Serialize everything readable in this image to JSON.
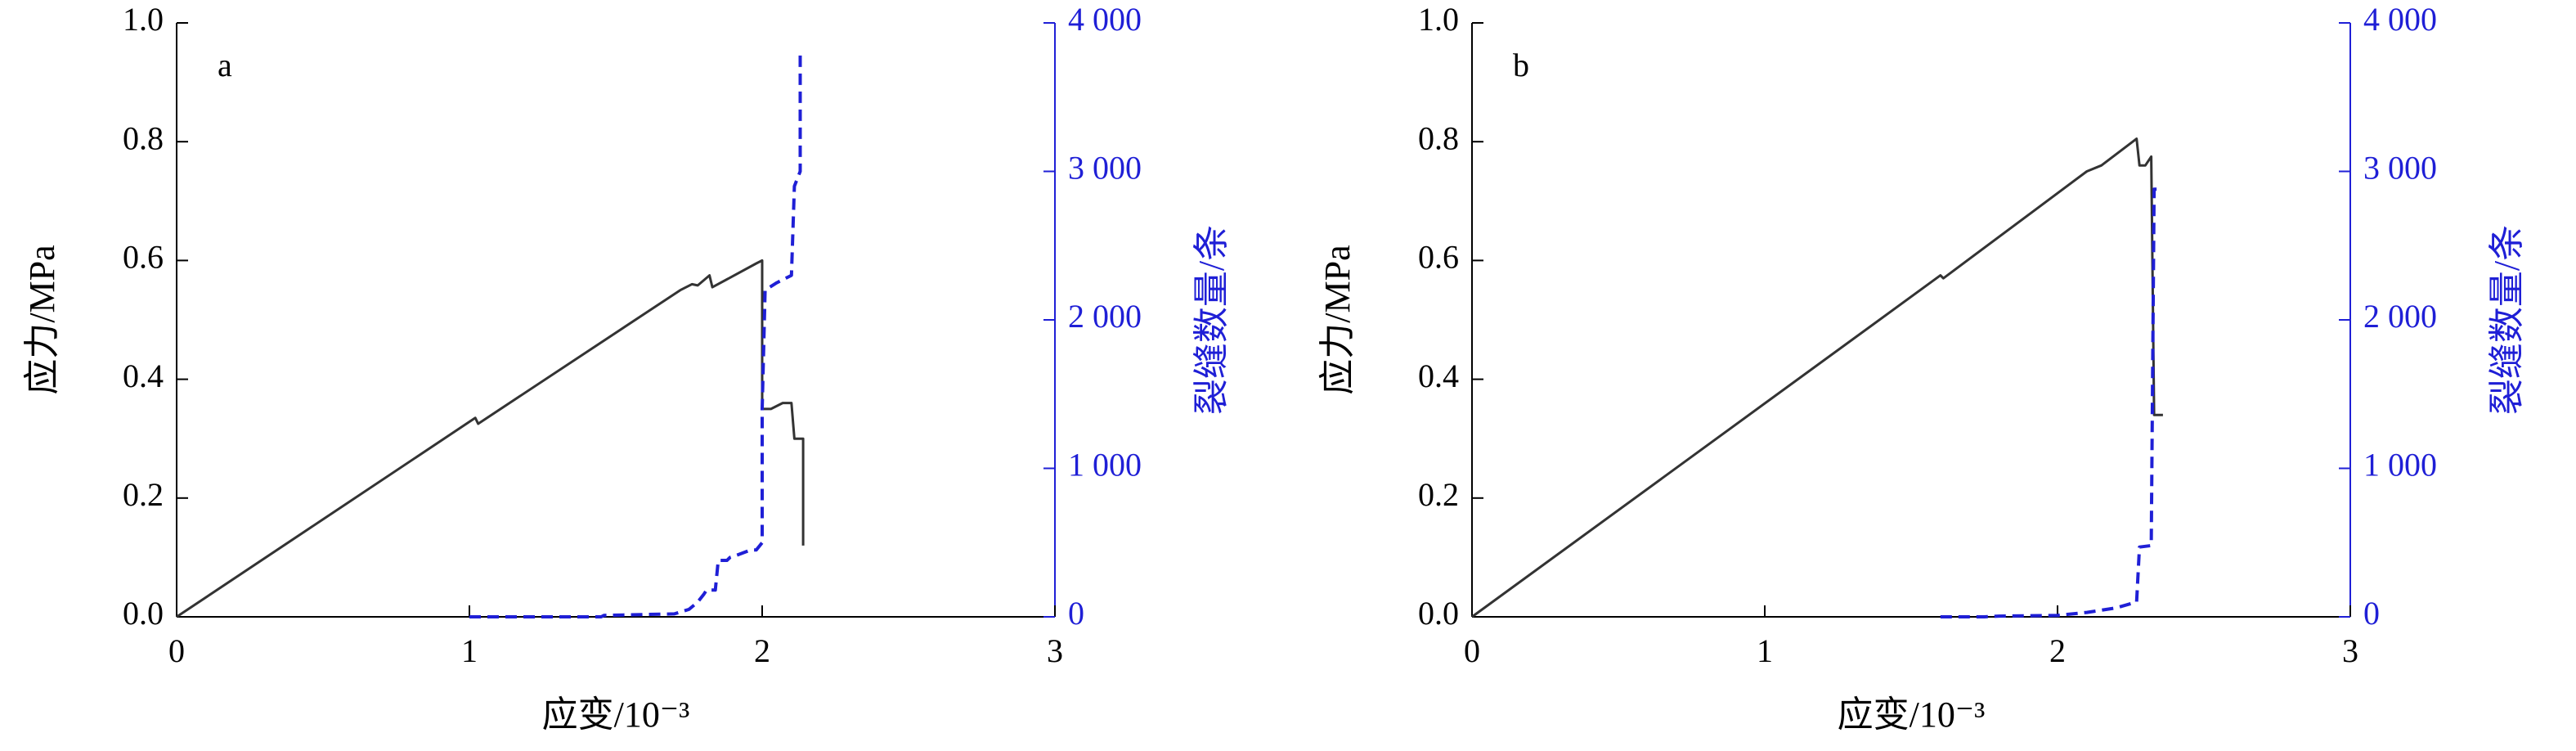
{
  "chart_data": [
    {
      "type": "line",
      "panel_label": "a",
      "xlabel": "应变/10⁻³",
      "ylabel": "应力/MPa",
      "y2label": "裂缝数量/条",
      "xlim": [
        0,
        3
      ],
      "xticks": [
        0,
        1,
        2,
        3
      ],
      "ylim": [
        0,
        1
      ],
      "yticks": [
        {
          "value": 0,
          "label": "0.0"
        },
        {
          "value": 0.2,
          "label": "0.2"
        },
        {
          "value": 0.4,
          "label": "0.4"
        },
        {
          "value": 0.6,
          "label": "0.6"
        },
        {
          "value": 0.8,
          "label": "0.8"
        },
        {
          "value": 1,
          "label": "1.0"
        }
      ],
      "y2lim": [
        0,
        4000
      ],
      "y2ticks": [
        0,
        {
          "value": 1000,
          "label": "1 000"
        },
        {
          "value": 2000,
          "label": "2 000"
        },
        {
          "value": 3000,
          "label": "3 000"
        },
        {
          "value": 4000,
          "label": "4 000"
        }
      ],
      "series": [
        {
          "color": "#333333",
          "x": [
            0,
            1.02,
            1.03,
            1.72,
            1.76,
            1.78,
            1.82,
            1.83,
            1.98,
            2.0,
            2.0,
            2.03,
            2.07,
            2.1,
            2.11,
            2.14,
            2.14
          ],
          "values": [
            0,
            0.335,
            0.325,
            0.55,
            0.56,
            0.558,
            0.575,
            0.555,
            0.595,
            0.6,
            0.35,
            0.35,
            0.36,
            0.36,
            0.3,
            0.3,
            0.12
          ]
        },
        {
          "color": "#1f1fd6",
          "axis": "y2",
          "dashed": true,
          "x": [
            1.0,
            1.45,
            1.46,
            1.7,
            1.75,
            1.78,
            1.8,
            1.81,
            1.84,
            1.85,
            1.88,
            1.89,
            1.92,
            1.96,
            1.98,
            2.0,
            2.0,
            2.01,
            2.05,
            2.1,
            2.11,
            2.13,
            2.13
          ],
          "values": [
            0,
            0,
            10,
            20,
            50,
            100,
            150,
            180,
            180,
            380,
            380,
            400,
            420,
            450,
            450,
            500,
            1400,
            2200,
            2250,
            2300,
            2900,
            3000,
            3800
          ]
        }
      ]
    },
    {
      "type": "line",
      "panel_label": "b",
      "xlabel": "应变/10⁻³",
      "ylabel": "应力/MPa",
      "y2label": "裂缝数量/条",
      "xlim": [
        0,
        3
      ],
      "xticks": [
        0,
        1,
        2,
        3
      ],
      "ylim": [
        0,
        1
      ],
      "yticks": [
        {
          "value": 0,
          "label": "0.0"
        },
        {
          "value": 0.2,
          "label": "0.2"
        },
        {
          "value": 0.4,
          "label": "0.4"
        },
        {
          "value": 0.6,
          "label": "0.6"
        },
        {
          "value": 0.8,
          "label": "0.8"
        },
        {
          "value": 1,
          "label": "1.0"
        }
      ],
      "y2lim": [
        0,
        4000
      ],
      "y2ticks": [
        0,
        {
          "value": 1000,
          "label": "1 000"
        },
        {
          "value": 2000,
          "label": "2 000"
        },
        {
          "value": 3000,
          "label": "3 000"
        },
        {
          "value": 4000,
          "label": "4 000"
        }
      ],
      "series": [
        {
          "color": "#333333",
          "x": [
            0,
            1.6,
            1.61,
            2.1,
            2.15,
            2.27,
            2.28,
            2.3,
            2.32,
            2.33,
            2.36
          ],
          "values": [
            0,
            0.575,
            0.57,
            0.75,
            0.76,
            0.805,
            0.76,
            0.76,
            0.775,
            0.34,
            0.34
          ]
        },
        {
          "color": "#1f1fd6",
          "axis": "y2",
          "dashed": true,
          "x": [
            1.6,
            1.75,
            1.8,
            2.0,
            2.1,
            2.2,
            2.27,
            2.28,
            2.32,
            2.33,
            2.36
          ],
          "values": [
            0,
            0,
            5,
            10,
            30,
            60,
            100,
            470,
            480,
            2880,
            2880
          ]
        }
      ]
    }
  ]
}
